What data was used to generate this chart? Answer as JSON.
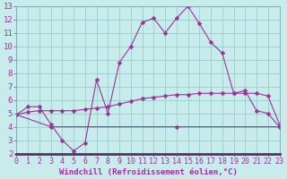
{
  "line1_x": [
    0,
    1,
    2,
    3,
    4,
    5,
    6,
    7,
    8,
    9,
    10,
    11,
    12,
    13,
    14,
    15,
    16,
    17,
    18,
    19,
    20,
    21,
    22,
    23
  ],
  "line1_y": [
    4.9,
    5.5,
    5.5,
    4.2,
    3.0,
    2.2,
    2.8,
    7.5,
    5.0,
    8.8,
    10.0,
    11.8,
    12.1,
    11.0,
    12.1,
    13.0,
    11.7,
    10.3,
    9.5,
    6.5,
    6.7,
    5.2,
    5.0,
    4.0
  ],
  "line2_x": [
    0,
    1,
    2,
    3,
    4,
    5,
    6,
    7,
    8,
    9,
    10,
    11,
    12,
    13,
    14,
    15,
    16,
    17,
    18,
    19,
    20,
    21,
    22,
    23
  ],
  "line2_y": [
    4.9,
    5.1,
    5.2,
    5.2,
    5.2,
    5.2,
    5.3,
    5.4,
    5.5,
    5.7,
    5.9,
    6.1,
    6.2,
    6.3,
    6.4,
    6.4,
    6.5,
    6.5,
    6.5,
    6.5,
    6.5,
    6.5,
    6.3,
    4.2
  ],
  "line3_x": [
    0,
    3,
    14,
    23
  ],
  "line3_y": [
    4.9,
    4.0,
    4.0,
    4.0
  ],
  "color": "#993399",
  "linewidth": 0.8,
  "markersize": 2.5,
  "xlabel": "Windchill (Refroidissement éolien,°C)",
  "xlabel_fontsize": 6.5,
  "bg_color": "#c8ecec",
  "grid_color": "#99cccc",
  "ylim": [
    2,
    13
  ],
  "xlim": [
    0,
    23
  ],
  "yticks": [
    2,
    3,
    4,
    5,
    6,
    7,
    8,
    9,
    10,
    11,
    12,
    13
  ],
  "xticks": [
    0,
    1,
    2,
    3,
    4,
    5,
    6,
    7,
    8,
    9,
    10,
    11,
    12,
    13,
    14,
    15,
    16,
    17,
    18,
    19,
    20,
    21,
    22,
    23
  ],
  "tick_fontsize": 6,
  "ytick_fontsize": 6.5
}
